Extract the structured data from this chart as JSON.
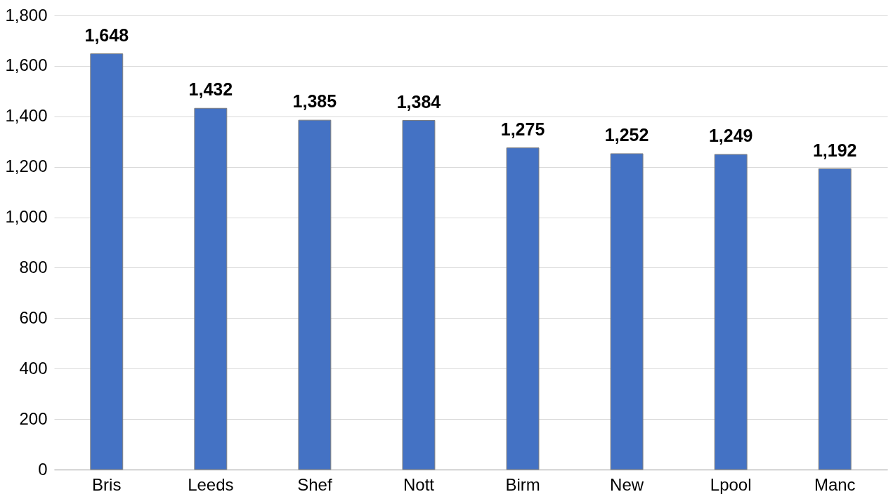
{
  "chart_data": {
    "type": "bar",
    "categories": [
      "Bris",
      "Leeds",
      "Shef",
      "Nott",
      "Birm",
      "New",
      "Lpool",
      "Manc"
    ],
    "values": [
      1648,
      1432,
      1385,
      1384,
      1275,
      1252,
      1249,
      1192
    ],
    "value_labels": [
      "1,648",
      "1,432",
      "1,385",
      "1,384",
      "1,275",
      "1,252",
      "1,249",
      "1,192"
    ],
    "color": "#4472c4",
    "ylim": [
      0,
      1800
    ],
    "yticks": [
      0,
      200,
      400,
      600,
      800,
      {
        "value": 1000,
        "label": "1,000"
      },
      {
        "value": 1200,
        "label": "1,200"
      },
      {
        "value": 1400,
        "label": "1,400"
      },
      {
        "value": 1600,
        "label": "1,600"
      },
      {
        "value": 1800,
        "label": "1,800"
      }
    ],
    "grid": "y"
  }
}
